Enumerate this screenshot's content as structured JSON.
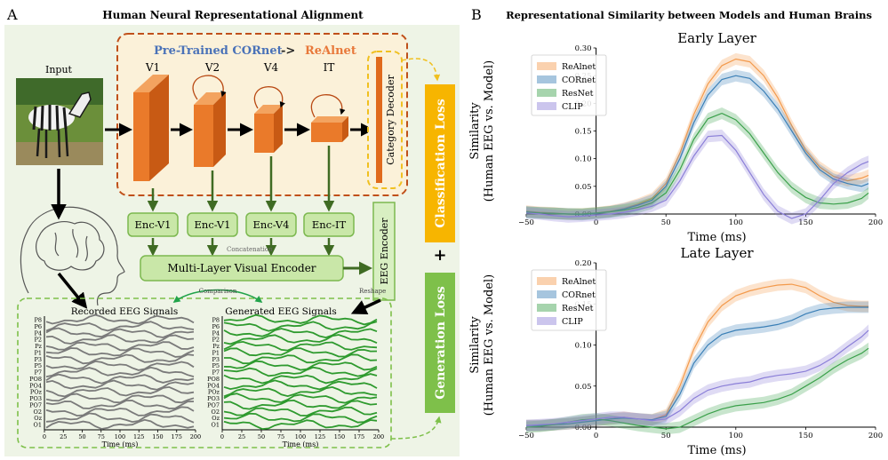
{
  "panel_a": {
    "letter": "A",
    "title": "Human Neural Representational Alignment",
    "input_label": "Input",
    "model_title_part1": "Pre-Trained CORnet",
    "model_title_arrow": "->",
    "model_title_part2": "ReAlnet",
    "layers": [
      "V1",
      "V2",
      "V4",
      "IT"
    ],
    "category_decoder": "Category Decoder",
    "encoders": [
      "Enc-V1",
      "Enc-V1",
      "Enc-V4",
      "Enc-IT"
    ],
    "concatenation": "Concatenation",
    "multi_layer_encoder": "Multi-Layer Visual Encoder",
    "eeg_encoder": "EEG Encoder",
    "reshape": "Reshape",
    "comparison": "Comparison",
    "classification_loss": "Classification Loss",
    "plus": "+",
    "generation_loss": "Generation Loss",
    "recorded_title": "Recorded EEG Signals",
    "generated_title": "Generated EEG Signals",
    "channels": [
      "P8",
      "P6",
      "P4",
      "P2",
      "Pz",
      "P1",
      "P3",
      "P5",
      "P7",
      "PO8",
      "PO4",
      "POz",
      "PO3",
      "PO7",
      "O2",
      "Oz",
      "O1"
    ],
    "time_ticks": [
      "0",
      "25",
      "50",
      "75",
      "100",
      "125",
      "150",
      "175",
      "200"
    ],
    "time_label": "Time (ms)",
    "colors": {
      "panel_bg": "#eef4e6",
      "model_bg": "#fbf1d9",
      "orange_border": "#c0501a",
      "box_orange": "#ea7a2a",
      "green_box": "#c9e7a8",
      "green_border": "#7cb84f",
      "dark_green": "#3f6b23",
      "class_loss": "#f7b500",
      "gen_loss": "#7ec04a",
      "recorded": "#7a7a7a",
      "generated": "#2e9a2e"
    }
  },
  "panel_b": {
    "letter": "B",
    "title": "Representational Similarity between Models and Human Brains"
  },
  "chart_data": [
    {
      "type": "line",
      "title": "Early Layer",
      "xlabel": "Time (ms)",
      "ylabel_line1": "Similarity",
      "ylabel_line2": "(Human EEG vs. Model)",
      "xlim": [
        -50,
        200
      ],
      "ylim": [
        0,
        0.3
      ],
      "xticks": [
        "−50",
        "0",
        "50",
        "100",
        "150",
        "200"
      ],
      "yticks": [
        "0.00",
        "0.05",
        "0.10",
        "0.15",
        "0.20",
        "0.25",
        "0.30"
      ],
      "legend_position": "top-left",
      "x": [
        -50,
        -40,
        -30,
        -20,
        -10,
        0,
        10,
        20,
        30,
        40,
        50,
        60,
        70,
        80,
        90,
        100,
        110,
        120,
        130,
        140,
        150,
        160,
        170,
        180,
        190,
        195
      ],
      "series": [
        {
          "name": "ReAlnet",
          "color": "#f39a4c",
          "values": [
            0.005,
            0.003,
            0.002,
            0.0,
            0.0,
            0.002,
            0.005,
            0.01,
            0.018,
            0.028,
            0.055,
            0.11,
            0.18,
            0.235,
            0.268,
            0.28,
            0.275,
            0.25,
            0.21,
            0.16,
            0.115,
            0.085,
            0.068,
            0.06,
            0.065,
            0.07
          ]
        },
        {
          "name": "CORnet",
          "color": "#3a7fb6",
          "values": [
            0.004,
            0.002,
            0.001,
            0.0,
            -0.001,
            0.001,
            0.004,
            0.009,
            0.016,
            0.025,
            0.05,
            0.1,
            0.165,
            0.215,
            0.243,
            0.25,
            0.245,
            0.222,
            0.19,
            0.15,
            0.11,
            0.08,
            0.063,
            0.055,
            0.05,
            0.055
          ]
        },
        {
          "name": "ResNet",
          "color": "#3aa04a",
          "values": [
            0.003,
            0.002,
            0.001,
            0.0,
            0.0,
            0.002,
            0.004,
            0.007,
            0.012,
            0.02,
            0.038,
            0.08,
            0.135,
            0.172,
            0.182,
            0.17,
            0.145,
            0.11,
            0.075,
            0.048,
            0.03,
            0.02,
            0.018,
            0.02,
            0.028,
            0.038
          ]
        },
        {
          "name": "CLIP",
          "color": "#8b7fd8",
          "values": [
            0.002,
            0.0,
            -0.003,
            -0.005,
            -0.004,
            -0.002,
            0.0,
            0.003,
            0.008,
            0.014,
            0.025,
            0.06,
            0.105,
            0.14,
            0.142,
            0.115,
            0.075,
            0.035,
            0.005,
            -0.008,
            0.0,
            0.025,
            0.055,
            0.075,
            0.09,
            0.095
          ]
        }
      ]
    },
    {
      "type": "line",
      "title": "Late Layer",
      "xlabel": "Time (ms)",
      "ylabel_line1": "Similarity",
      "ylabel_line2": "(Human EEG vs. Model)",
      "xlim": [
        -50,
        200
      ],
      "ylim": [
        0,
        0.2
      ],
      "xticks": [
        "−50",
        "0",
        "50",
        "100",
        "150",
        "200"
      ],
      "yticks": [
        "0.00",
        "0.05",
        "0.10",
        "0.15",
        "0.20"
      ],
      "legend_position": "top-left",
      "x": [
        -50,
        -40,
        -30,
        -20,
        -10,
        0,
        10,
        20,
        30,
        40,
        50,
        60,
        70,
        80,
        90,
        100,
        110,
        120,
        130,
        140,
        150,
        160,
        170,
        180,
        190,
        195
      ],
      "series": [
        {
          "name": "ReAlnet",
          "color": "#f39a4c",
          "values": [
            0.002,
            0.002,
            0.003,
            0.004,
            0.006,
            0.008,
            0.01,
            0.012,
            0.01,
            0.009,
            0.015,
            0.05,
            0.095,
            0.128,
            0.148,
            0.16,
            0.166,
            0.17,
            0.173,
            0.174,
            0.17,
            0.16,
            0.152,
            0.148,
            0.147,
            0.147
          ]
        },
        {
          "name": "CORnet",
          "color": "#3a7fb6",
          "values": [
            0.002,
            0.002,
            0.003,
            0.004,
            0.006,
            0.008,
            0.01,
            0.011,
            0.01,
            0.009,
            0.013,
            0.04,
            0.078,
            0.1,
            0.113,
            0.118,
            0.12,
            0.122,
            0.125,
            0.13,
            0.138,
            0.143,
            0.145,
            0.146,
            0.146,
            0.146
          ]
        },
        {
          "name": "ResNet",
          "color": "#3aa04a",
          "values": [
            0.0,
            0.001,
            0.003,
            0.006,
            0.009,
            0.01,
            0.008,
            0.005,
            0.002,
            0.0,
            -0.002,
            0.0,
            0.008,
            0.016,
            0.022,
            0.026,
            0.028,
            0.03,
            0.034,
            0.04,
            0.05,
            0.06,
            0.072,
            0.082,
            0.09,
            0.096
          ]
        },
        {
          "name": "CLIP",
          "color": "#8b7fd8",
          "values": [
            0.002,
            0.003,
            0.004,
            0.006,
            0.008,
            0.01,
            0.012,
            0.012,
            0.01,
            0.008,
            0.01,
            0.02,
            0.035,
            0.045,
            0.05,
            0.053,
            0.055,
            0.06,
            0.063,
            0.065,
            0.068,
            0.075,
            0.085,
            0.098,
            0.11,
            0.118
          ]
        }
      ]
    }
  ]
}
